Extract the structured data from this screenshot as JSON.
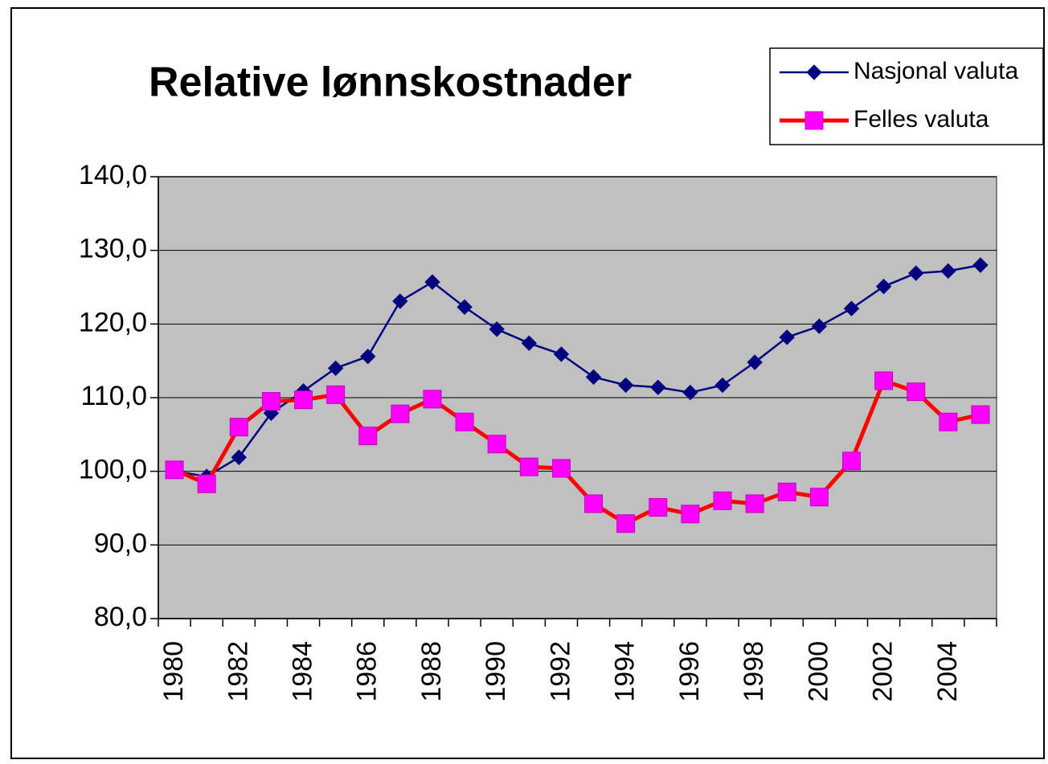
{
  "chart_data": {
    "type": "line",
    "title": "Relative lønnskostnader",
    "categories": [
      "1980",
      null,
      "1982",
      null,
      "1984",
      null,
      "1986",
      null,
      "1988",
      null,
      "1990",
      null,
      "1992",
      null,
      "1994",
      null,
      "1996",
      null,
      "1998",
      null,
      "2000",
      null,
      "2002",
      null,
      "2004",
      null
    ],
    "series": [
      {
        "name": "Nasjonal valuta",
        "color": "#000080",
        "marker": "diamond",
        "values": [
          100.0,
          99.3,
          101.9,
          107.9,
          110.9,
          114.0,
          115.6,
          123.1,
          125.7,
          122.3,
          119.3,
          117.4,
          115.9,
          112.8,
          111.7,
          111.4,
          110.7,
          111.7,
          114.8,
          118.2,
          119.7,
          122.1,
          125.1,
          126.9,
          127.2,
          128.0
        ]
      },
      {
        "name": "Felles valuta",
        "color": "#ff0000",
        "marker_color": "#ff00ff",
        "marker": "square",
        "values": [
          100.2,
          98.3,
          106.0,
          109.5,
          109.7,
          110.4,
          104.8,
          107.8,
          109.8,
          106.7,
          103.7,
          100.6,
          100.4,
          95.6,
          92.9,
          95.1,
          94.2,
          96.0,
          95.6,
          97.2,
          96.5,
          101.4,
          112.3,
          110.8,
          106.7,
          107.7
        ]
      }
    ],
    "ylim": [
      80,
      140
    ],
    "yticks": [
      {
        "value": 80,
        "label": "80,0"
      },
      {
        "value": 90,
        "label": "90,0"
      },
      {
        "value": 100,
        "label": "100,0"
      },
      {
        "value": 110,
        "label": "110,0"
      },
      {
        "value": 120,
        "label": "120,0"
      },
      {
        "value": 130,
        "label": "130,0"
      },
      {
        "value": 140,
        "label": "140,0"
      }
    ],
    "grid": true,
    "legend": "top-right"
  }
}
